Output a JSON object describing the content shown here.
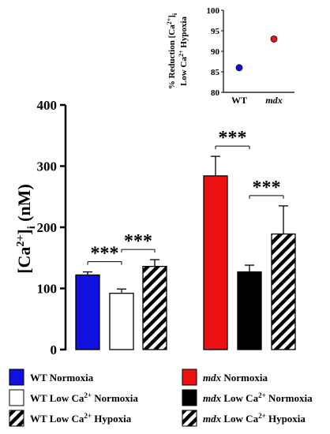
{
  "chart_data": [
    {
      "type": "bar",
      "ylabel_main": "[Ca",
      "ylabel_sup": "2+",
      "ylabel_mid": "]",
      "ylabel_sub": "i",
      "ylabel_unit": "(nM)",
      "ylim": [
        0,
        400
      ],
      "yticks": [
        "0",
        "100",
        "200",
        "300",
        "400"
      ],
      "bars": [
        {
          "group": "WT",
          "name": "WT Normoxia",
          "value": 122,
          "error": 5,
          "fill": "#1010e0",
          "pattern": "solid"
        },
        {
          "group": "WT",
          "name": "WT Low Ca2+ Normoxia",
          "value": 92,
          "error": 7,
          "fill": "#ffffff",
          "pattern": "empty"
        },
        {
          "group": "WT",
          "name": "WT Low Ca2+ Hypoxia",
          "value": 136,
          "error": 11,
          "fill": "#ffffff",
          "pattern": "hatch"
        },
        {
          "group": "mdx",
          "name": "mdx Normoxia",
          "value": 284,
          "error": 32,
          "fill": "#ee1111",
          "pattern": "solid"
        },
        {
          "group": "mdx",
          "name": "mdx Low Ca2+ Normoxia",
          "value": 127,
          "error": 11,
          "fill": "#000000",
          "pattern": "solid"
        },
        {
          "group": "mdx",
          "name": "mdx Low Ca2+ Hypoxia",
          "value": 189,
          "error": 46,
          "fill": "#ffffff",
          "pattern": "hatch"
        }
      ],
      "significance": [
        {
          "from": 0,
          "to": 1,
          "label": "***"
        },
        {
          "from": 1,
          "to": 2,
          "label": "***"
        },
        {
          "from": 3,
          "to": 4,
          "label": "***"
        },
        {
          "from": 4,
          "to": 5,
          "label": "***"
        }
      ],
      "legend": [
        {
          "prefix": "WT",
          "prefix_italic": false,
          "text1": " Normoxia",
          "sup": "",
          "text2": "",
          "fill": "#1010e0",
          "pattern": "solid"
        },
        {
          "prefix": "mdx",
          "prefix_italic": true,
          "text1": " Normoxia",
          "sup": "",
          "text2": "",
          "fill": "#ee1111",
          "pattern": "solid"
        },
        {
          "prefix": "WT",
          "prefix_italic": false,
          "text1": " Low Ca",
          "sup": "2+",
          "text2": " Normoxia",
          "fill": "#ffffff",
          "pattern": "empty"
        },
        {
          "prefix": "mdx",
          "prefix_italic": true,
          "text1": " Low Ca",
          "sup": "2+",
          "text2": " Normoxia",
          "fill": "#000000",
          "pattern": "solid"
        },
        {
          "prefix": "WT",
          "prefix_italic": false,
          "text1": " Low Ca",
          "sup": "2+",
          "text2": " Hypoxia",
          "fill": "#ffffff",
          "pattern": "hatch"
        },
        {
          "prefix": "mdx",
          "prefix_italic": true,
          "text1": " Low Ca",
          "sup": "2+",
          "text2": " Hypoxia",
          "fill": "#ffffff",
          "pattern": "hatch"
        }
      ]
    },
    {
      "type": "scatter",
      "ylabel_line1_a": "% Reduction [Ca",
      "ylabel_line1_sup": "2+",
      "ylabel_line1_b": "]",
      "ylabel_line1_sub": "i",
      "ylabel_line2_a": "Low Ca",
      "ylabel_line2_sup": "2+",
      "ylabel_line2_b": "  Hypoxia",
      "ylim": [
        80,
        100
      ],
      "yticks": [
        "80",
        "85",
        "90",
        "95",
        "100"
      ],
      "categories": [
        "WT",
        "mdx"
      ],
      "category_italic": [
        false,
        true
      ],
      "values": [
        86,
        93
      ],
      "colors": [
        "#1010e0",
        "#ee1111"
      ]
    }
  ]
}
